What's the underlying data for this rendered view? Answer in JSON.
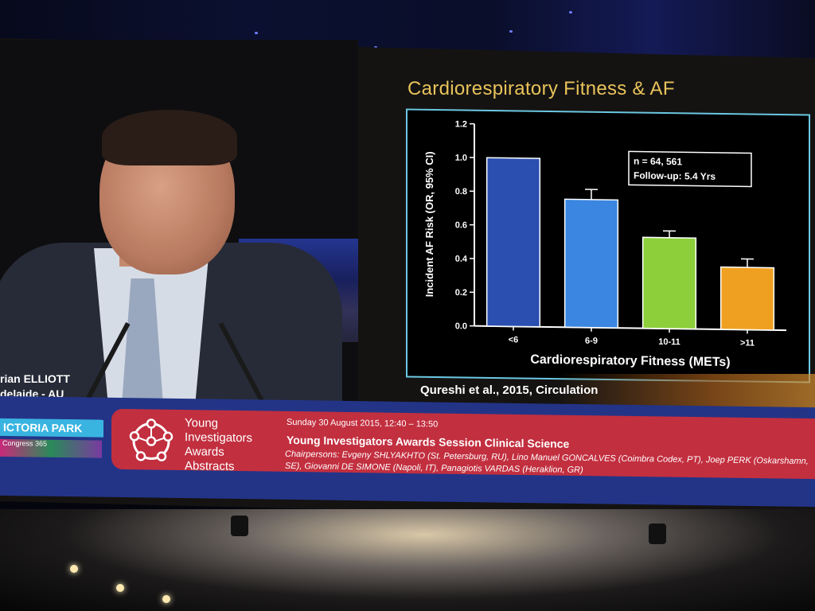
{
  "slide": {
    "title": "Cardiorespiratory Fitness & AF",
    "citation": "Qureshi et al., 2015, Circulation"
  },
  "chart_data": {
    "type": "bar",
    "categories": [
      "<6",
      "6-9",
      "10-11",
      ">11"
    ],
    "values": [
      1.0,
      0.76,
      0.54,
      0.37
    ],
    "errors": [
      0.0,
      0.06,
      0.04,
      0.05
    ],
    "colors": [
      "#2b4fb0",
      "#3a86e0",
      "#8ccf3a",
      "#f0a020"
    ],
    "xlabel": "Cardiorespiratory Fitness (METs)",
    "ylabel": "Incident AF Risk (OR, 95% CI)",
    "ylim": [
      0,
      1.2
    ],
    "yticks": [
      "0.0",
      "0.2",
      "0.4",
      "0.6",
      "0.8",
      "1.0",
      "1.2"
    ],
    "annotation": [
      "n = 64, 561",
      "Follow-up: 5.4 Yrs"
    ]
  },
  "speaker": {
    "name": "rian ELLIOTT",
    "location": "delaide - AU"
  },
  "banner": {
    "room": "ICTORIA PARK",
    "congress_tag": "Congress 365",
    "program": [
      "Young",
      "Investigators",
      "Awards",
      "Abstracts"
    ],
    "date": "Sunday 30 August  2015, 12:40 – 13:50",
    "session": "Young Investigators Awards Session Clinical Science",
    "chairs": "Chairpersons: Evgeny SHLYAKHTO (St. Petersburg, RU), Lino Manuel GONCALVES (Coimbra Codex, PT), Joep PERK (Oskarshamn, SE), Giovanni DE SIMONE (Napoli, IT), Panagiotis VARDAS (Heraklion, GR)"
  }
}
